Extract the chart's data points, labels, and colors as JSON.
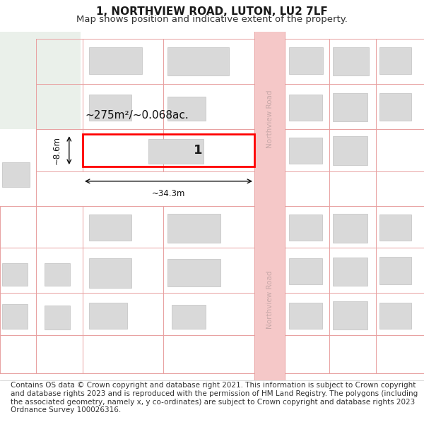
{
  "title": "1, NORTHVIEW ROAD, LUTON, LU2 7LF",
  "subtitle": "Map shows position and indicative extent of the property.",
  "footer": "Contains OS data © Crown copyright and database right 2021. This information is subject to Crown copyright and database rights 2023 and is reproduced with the permission of HM Land Registry. The polygons (including the associated geometry, namely x, y co-ordinates) are subject to Crown copyright and database rights 2023 Ordnance Survey 100026316.",
  "bg_color": "#ffffff",
  "road_color": "#f5c8c8",
  "road_line_color": "#e8a0a0",
  "building_fill": "#d9d9d9",
  "building_edge": "#c0c0c0",
  "highlight_edge": "#ff0000",
  "green_area": "#eaf0ea",
  "road_label_color": "#c8a8a8",
  "area_text": "~275m²/~0.068ac.",
  "width_text": "~34.3m",
  "height_text": "~8.6m",
  "label_1": "1",
  "title_fontsize": 11,
  "subtitle_fontsize": 9.5,
  "footer_fontsize": 7.5
}
